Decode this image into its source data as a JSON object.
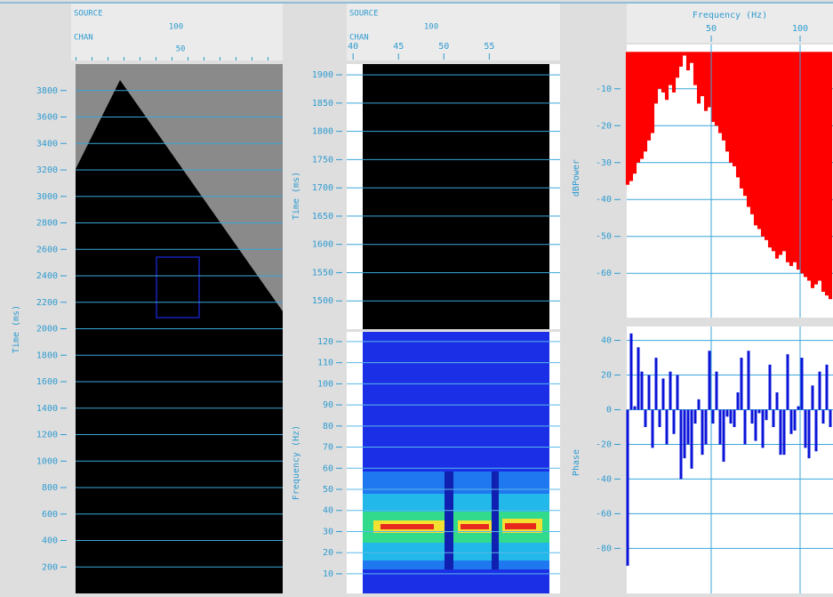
{
  "seismic": {
    "header": {
      "source_label": "SOURCE",
      "source_tick": "100",
      "chan_label": "CHAN",
      "chan_tick": "50"
    },
    "y_label": "Time (ms)",
    "ylim": [
      0,
      4000
    ],
    "yticks": [
      200,
      400,
      600,
      800,
      1000,
      1200,
      1400,
      1600,
      1800,
      2000,
      2200,
      2400,
      2600,
      2800,
      3000,
      3200,
      3400,
      3600,
      3800
    ]
  },
  "zoom": {
    "header": {
      "source_label": "SOURCE",
      "source_tick": "100",
      "chan_label": "CHAN"
    },
    "xlim": [
      39.3,
      62.8
    ],
    "xticks": [
      40,
      45,
      50,
      55
    ],
    "y_label": "Time (ms)",
    "ylim": [
      1450,
      1919
    ],
    "yticks": [
      1500,
      1550,
      1600,
      1650,
      1700,
      1750,
      1800,
      1850,
      1900
    ]
  },
  "spectrogram": {
    "y_label": "Frequency (Hz)",
    "ylim": [
      0.7,
      124.6
    ],
    "yticks": [
      10,
      20,
      30,
      40,
      50,
      60,
      70,
      80,
      90,
      100,
      110,
      120
    ]
  },
  "spectrum": {
    "type": "bar",
    "x_label": "Frequency (Hz)",
    "y_label": "dBPower",
    "color": "#ff0000",
    "x": [
      3,
      5,
      7,
      9,
      11,
      13,
      15,
      17,
      19,
      21,
      23,
      25,
      27,
      29,
      31,
      33,
      35,
      37,
      39,
      41,
      43,
      45,
      47,
      49,
      51,
      53,
      55,
      57,
      59,
      61,
      63,
      65,
      67,
      69,
      71,
      73,
      75,
      77,
      79,
      81,
      83,
      85,
      87,
      89,
      91,
      93,
      95,
      97,
      99,
      101,
      103,
      105,
      107,
      109,
      111,
      113,
      115,
      117
    ],
    "values": [
      -36,
      -35,
      -33,
      -30,
      -29,
      -27,
      -24,
      -22,
      -14,
      -10,
      -11,
      -13,
      -9,
      -11,
      -7,
      -4,
      -1,
      -5,
      -3,
      -9,
      -14,
      -12,
      -16,
      -15,
      -19,
      -20,
      -22,
      -24,
      -27,
      -30,
      -31,
      -34,
      -37,
      -39,
      -42,
      -44,
      -47,
      -48,
      -50,
      -51,
      -53,
      -54,
      -56,
      -55,
      -54,
      -57,
      -58,
      -57,
      -59,
      -60,
      -61,
      -62,
      -64,
      -63,
      -62,
      -65,
      -66,
      -67
    ],
    "xlim": [
      2.5,
      118.5
    ],
    "xticks": [
      50,
      100
    ],
    "ylim": [
      -72,
      2
    ],
    "yticks": [
      -10,
      -20,
      -30,
      -40,
      -50,
      -60
    ],
    "grid": true
  },
  "phase": {
    "type": "bar",
    "y_label": "Phase",
    "color": "#0a14d8",
    "x": [
      3,
      5,
      7,
      9,
      11,
      13,
      15,
      17,
      19,
      21,
      23,
      25,
      27,
      29,
      31,
      33,
      35,
      37,
      39,
      41,
      43,
      45,
      47,
      49,
      51,
      53,
      55,
      57,
      59,
      61,
      63,
      65,
      67,
      69,
      71,
      73,
      75,
      77,
      79,
      81,
      83,
      85,
      87,
      89,
      91,
      93,
      95,
      97,
      99,
      101,
      103,
      105,
      107,
      109,
      111,
      113,
      115,
      117
    ],
    "values": [
      -90,
      44,
      2,
      36,
      22,
      -10,
      20,
      -22,
      30,
      -10,
      18,
      -20,
      22,
      -14,
      20,
      -40,
      -28,
      -20,
      -34,
      -8,
      6,
      -26,
      -20,
      34,
      -8,
      22,
      -20,
      -30,
      -4,
      -8,
      -10,
      10,
      30,
      -20,
      34,
      -8,
      -18,
      -2,
      -22,
      -6,
      26,
      -10,
      10,
      -26,
      -26,
      32,
      -14,
      -12,
      2,
      30,
      -22,
      -28,
      14,
      -24,
      22,
      -8,
      26,
      -10
    ],
    "xlim": [
      2.5,
      118.5
    ],
    "xticks": [
      50,
      100
    ],
    "ylim": [
      -106,
      48
    ],
    "yticks": [
      40,
      20,
      0,
      -20,
      -40,
      -60,
      -80
    ],
    "grid": true
  }
}
